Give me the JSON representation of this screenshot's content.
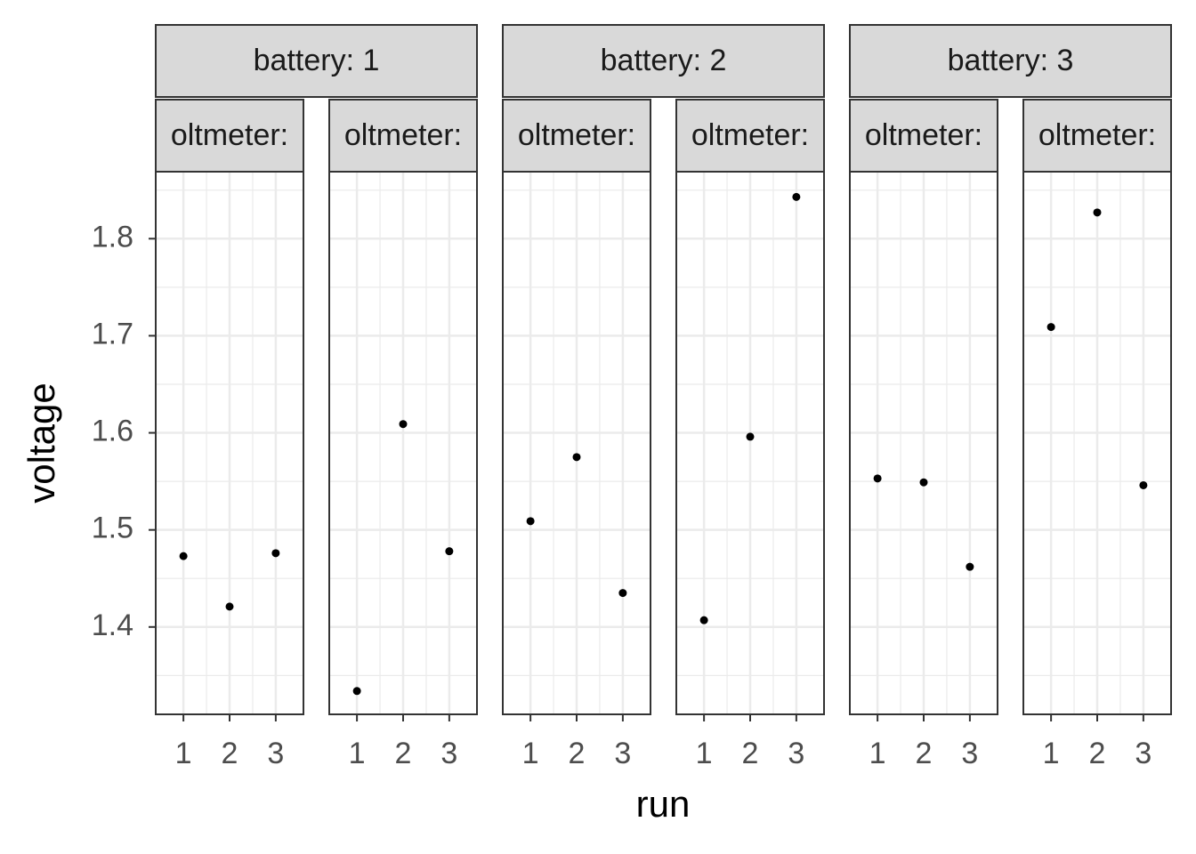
{
  "chart_data": {
    "type": "scatter",
    "xlabel": "run",
    "ylabel": "voltage",
    "xlim": [
      0.4,
      3.6
    ],
    "xticks": [
      1,
      2,
      3
    ],
    "ylim": [
      1.31,
      1.869
    ],
    "yticks": [
      1.4,
      1.5,
      1.6,
      1.7,
      1.8
    ],
    "grid": true,
    "color": "#000000",
    "groups": [
      {
        "label": "battery: 1",
        "panels": [
          {
            "label": "oltmeter:",
            "x": [
              1,
              2,
              3
            ],
            "values": [
              1.473,
              1.421,
              1.476
            ]
          },
          {
            "label": "oltmeter:",
            "x": [
              1,
              2,
              3
            ],
            "values": [
              1.334,
              1.609,
              1.478
            ]
          }
        ]
      },
      {
        "label": "battery: 2",
        "panels": [
          {
            "label": "oltmeter:",
            "x": [
              1,
              2,
              3
            ],
            "values": [
              1.509,
              1.575,
              1.435
            ]
          },
          {
            "label": "oltmeter:",
            "x": [
              1,
              2,
              3
            ],
            "values": [
              1.407,
              1.596,
              1.843
            ]
          }
        ]
      },
      {
        "label": "battery: 3",
        "panels": [
          {
            "label": "oltmeter:",
            "x": [
              1,
              2,
              3
            ],
            "values": [
              1.553,
              1.549,
              1.462
            ]
          },
          {
            "label": "oltmeter:",
            "x": [
              1,
              2,
              3
            ],
            "values": [
              1.709,
              1.827,
              1.546
            ]
          }
        ]
      }
    ]
  }
}
